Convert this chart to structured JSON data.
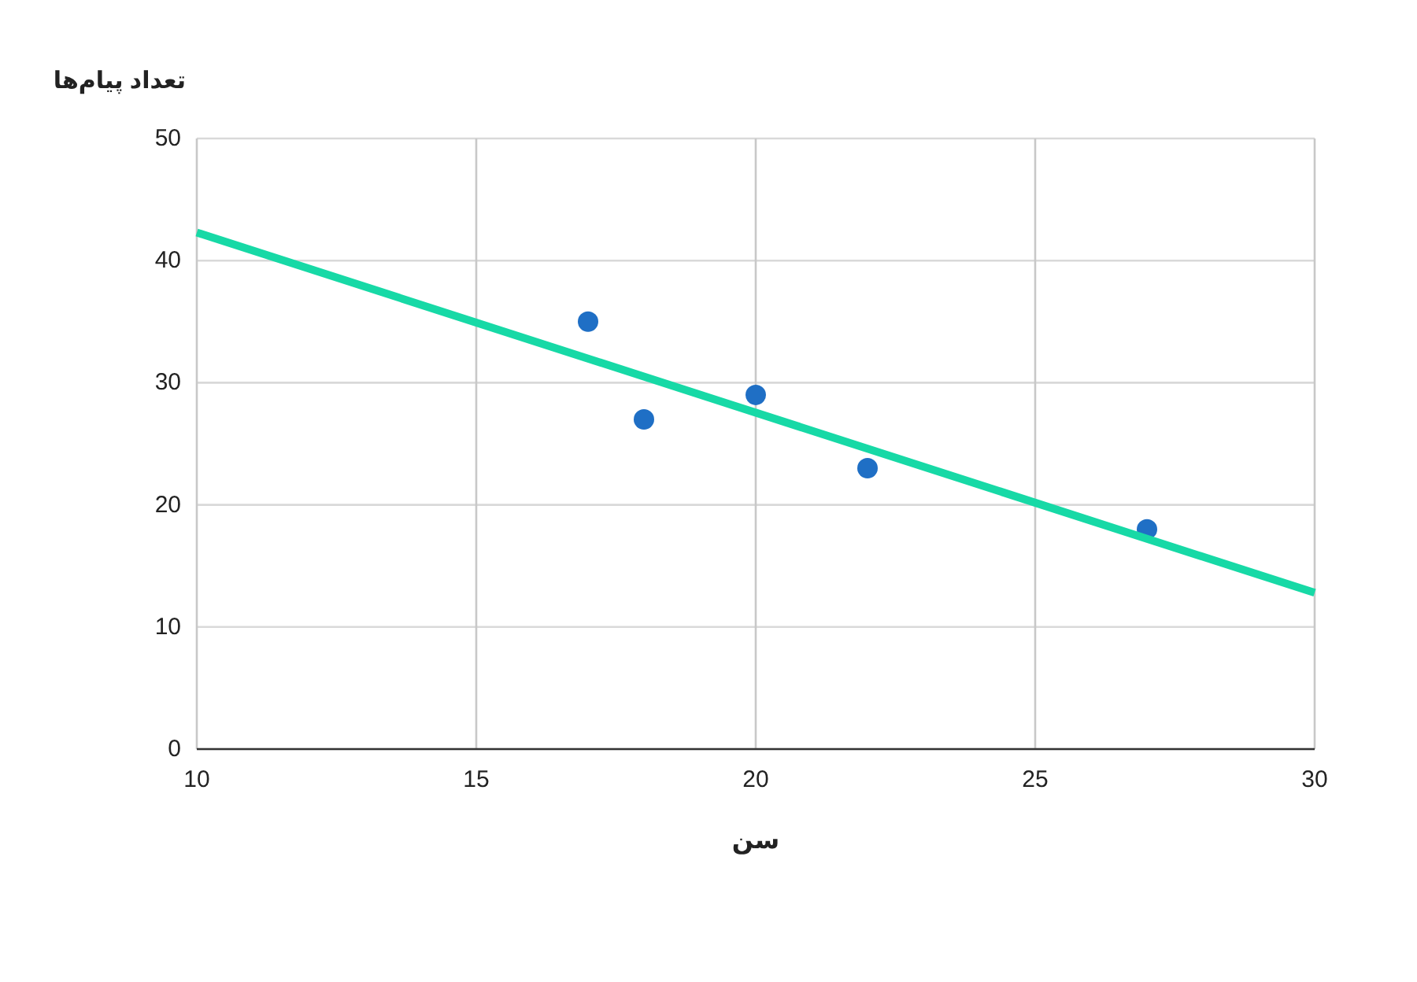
{
  "chart_data": {
    "type": "scatter",
    "xlabel": "سن",
    "ylabel": "تعداد پیام‌ها",
    "xlim": [
      10,
      30
    ],
    "xticks": [
      10,
      15,
      20,
      25,
      30
    ],
    "ylim": [
      0,
      50
    ],
    "yticks": [
      0,
      10,
      20,
      30,
      40,
      50
    ],
    "grid": true,
    "marker": "circle",
    "series": [
      {
        "color": "#1f6fc5",
        "x": [
          17,
          18,
          20,
          22,
          27
        ],
        "values": [
          35,
          27,
          29,
          23,
          18
        ]
      },
      {
        "type": "line",
        "color": "#17d9a6",
        "x": [
          10,
          30
        ],
        "values": [
          42.3,
          12.8
        ],
        "marker": "none",
        "line_style": "solid"
      }
    ]
  }
}
